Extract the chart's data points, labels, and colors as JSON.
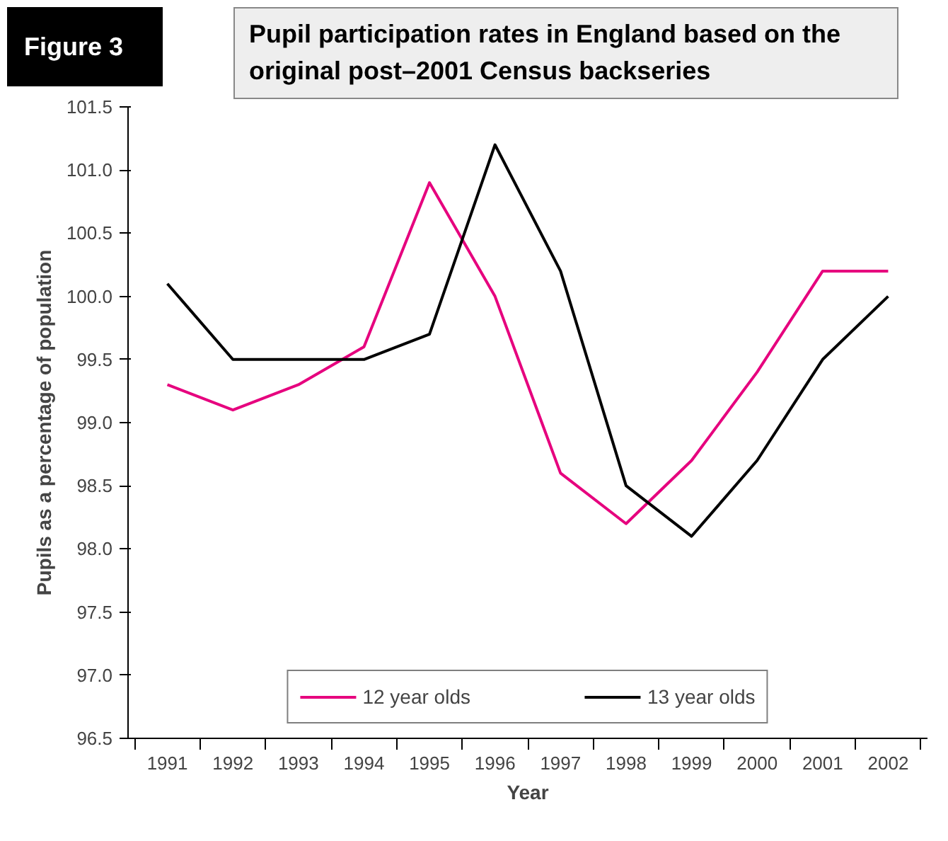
{
  "chart_data": {
    "type": "line",
    "title": "Pupil participation rates in England based on the original post–2001 Census backseries",
    "annotations": [
      "Figure 3"
    ],
    "xlabel": "Year",
    "ylabel": "Pupils as a percentage of population",
    "categories": [
      "1991",
      "1992",
      "1993",
      "1994",
      "1995",
      "1996",
      "1997",
      "1998",
      "1999",
      "2000",
      "2001",
      "2002"
    ],
    "series": [
      {
        "name": "12 year olds",
        "color": "#e6007e",
        "values": [
          99.3,
          99.1,
          99.3,
          99.6,
          100.9,
          100.0,
          98.6,
          98.2,
          98.7,
          99.4,
          100.2,
          100.2
        ]
      },
      {
        "name": "13 year olds",
        "color": "#000000",
        "values": [
          100.1,
          99.5,
          99.5,
          99.5,
          99.7,
          101.2,
          100.2,
          98.5,
          98.1,
          98.7,
          99.5,
          100.0
        ]
      }
    ],
    "ylim": [
      96.5,
      101.5
    ],
    "yticks": [
      96.5,
      {
        "value": 97,
        "label": "97.0"
      },
      97.5,
      {
        "value": 98,
        "label": "98.0"
      },
      98.5,
      {
        "value": 99,
        "label": "99.0"
      },
      99.5,
      {
        "value": 100,
        "label": "100.0"
      },
      100.5,
      {
        "value": 101,
        "label": "101.0"
      },
      101.5
    ],
    "grid": false,
    "legend": "bottom",
    "marker": "none",
    "line_style": "solid"
  }
}
